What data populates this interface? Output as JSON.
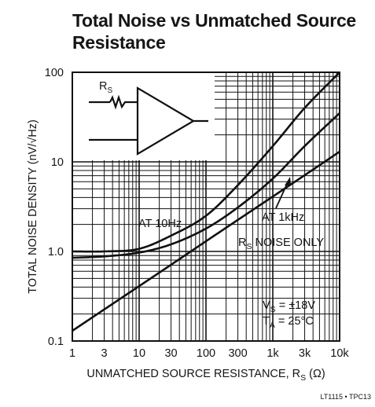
{
  "title_line1": "Total Noise vs Unmatched Source",
  "title_line2": "Resistance",
  "footer": "LT1115 • TPC13",
  "chart_data": {
    "type": "line",
    "xscale": "log",
    "yscale": "log",
    "xlim": [
      1,
      10000
    ],
    "ylim": [
      0.1,
      100
    ],
    "xticks": [
      1,
      3,
      10,
      30,
      100,
      300,
      1000,
      3000,
      10000
    ],
    "xtick_labels": [
      "1",
      "3",
      "10",
      "30",
      "100",
      "300",
      "1k",
      "3k",
      "10k"
    ],
    "yticks": [
      0.1,
      1,
      10,
      100
    ],
    "ytick_labels": [
      "0.1",
      "1.0",
      "10",
      "100"
    ],
    "grid": true,
    "xlabel": {
      "main": "UNMATCHED SOURCE RESISTANCE, R",
      "sub": "S",
      "unit": " (Ω)"
    },
    "ylabel": "TOTAL NOISE DENSITY (nV/√Hz)",
    "series": [
      {
        "name": "AT 10Hz",
        "x": [
          1,
          3,
          10,
          30,
          100,
          300,
          1000,
          3000,
          10000
        ],
        "y": [
          1.0,
          1.0,
          1.07,
          1.5,
          2.5,
          5.5,
          15,
          40,
          100
        ]
      },
      {
        "name": "AT 1kHz",
        "x": [
          1,
          3,
          10,
          30,
          100,
          300,
          1000,
          3000,
          10000
        ],
        "y": [
          0.85,
          0.88,
          0.97,
          1.2,
          1.8,
          3.1,
          6.5,
          15,
          35
        ]
      },
      {
        "name": "RS NOISE ONLY",
        "x": [
          1,
          3,
          10,
          30,
          100,
          300,
          1000,
          3000,
          10000
        ],
        "y": [
          0.13,
          0.225,
          0.41,
          0.71,
          1.3,
          2.25,
          4.1,
          7.1,
          13
        ]
      }
    ],
    "annotations": {
      "at10hz": "AT 10Hz",
      "at1khz": "AT 1kHz",
      "rs_main": "R",
      "rs_sub": "S",
      "rs_rest": " NOISE ONLY",
      "vs": "V",
      "vs_sub": "S",
      "vs_rest": " = ±18V",
      "ta": "T",
      "ta_sub": "A",
      "ta_rest": " = 25°C"
    },
    "inset_label_main": "R",
    "inset_label_sub": "S"
  }
}
